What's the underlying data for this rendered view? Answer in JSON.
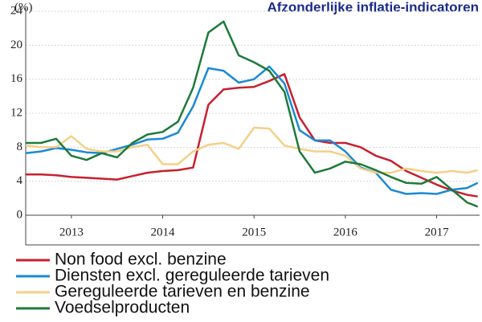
{
  "chart_data": {
    "type": "line",
    "title": "Afzonderlijke inflatie-indicatoren",
    "y_label": "(%)",
    "x": [
      2013.0,
      2013.167,
      2013.333,
      2013.5,
      2013.667,
      2013.833,
      2014.0,
      2014.167,
      2014.333,
      2014.5,
      2014.667,
      2014.833,
      2015.0,
      2015.167,
      2015.333,
      2015.5,
      2015.667,
      2015.833,
      2016.0,
      2016.167,
      2016.333,
      2016.5,
      2016.667,
      2016.833,
      2017.0,
      2017.167,
      2017.333,
      2017.5,
      2017.667,
      2017.833,
      2017.95
    ],
    "xlim": [
      2013.0,
      2017.97
    ],
    "xticks": [
      {
        "value": 2013.5,
        "label": "2013"
      },
      {
        "value": 2014.5,
        "label": "2014"
      },
      {
        "value": 2015.5,
        "label": "2015"
      },
      {
        "value": 2016.5,
        "label": "2016"
      },
      {
        "value": 2017.5,
        "label": "2017"
      }
    ],
    "ylim": [
      0,
      24
    ],
    "yticks": [
      0,
      4,
      8,
      12,
      16,
      20,
      24
    ],
    "grid": true,
    "series": [
      {
        "name": "Non food excl. benzine",
        "color": "#c8202e",
        "values": [
          4.8,
          4.8,
          4.7,
          4.5,
          4.4,
          4.3,
          4.2,
          4.6,
          5.0,
          5.2,
          5.3,
          5.6,
          13.0,
          14.8,
          15.0,
          15.1,
          15.8,
          16.6,
          11.5,
          8.8,
          8.5,
          8.5,
          8.0,
          7.0,
          6.4,
          5.2,
          4.4,
          3.6,
          2.9,
          2.4,
          2.2
        ]
      },
      {
        "name": "Diensten excl. gereguleerde tarieven",
        "color": "#1a8ad4",
        "values": [
          7.3,
          7.5,
          7.9,
          7.7,
          7.4,
          7.3,
          7.8,
          8.3,
          8.9,
          9.0,
          9.7,
          12.8,
          17.3,
          17.0,
          15.6,
          16.0,
          17.5,
          15.5,
          10.0,
          8.8,
          8.8,
          7.5,
          5.6,
          5.0,
          3.0,
          2.5,
          2.6,
          2.5,
          3.0,
          3.2,
          3.8
        ]
      },
      {
        "name": "Gereguleerde tarieven en benzine",
        "color": "#f5cf88",
        "values": [
          8.2,
          8.0,
          8.0,
          9.3,
          7.8,
          7.5,
          7.5,
          8.0,
          8.3,
          6.0,
          6.0,
          7.5,
          8.3,
          8.5,
          7.8,
          10.3,
          10.2,
          8.2,
          7.8,
          7.5,
          7.5,
          7.0,
          5.5,
          5.0,
          5.0,
          5.5,
          5.2,
          5.0,
          5.2,
          5.0,
          5.3
        ]
      },
      {
        "name": "Voedselproducten",
        "color": "#1e7a3a",
        "values": [
          8.5,
          8.5,
          9.0,
          7.0,
          6.5,
          7.3,
          6.8,
          8.5,
          9.5,
          9.8,
          11.0,
          15.0,
          21.5,
          22.8,
          18.8,
          18.0,
          17.0,
          14.5,
          7.5,
          5.0,
          5.5,
          6.3,
          6.0,
          5.3,
          4.5,
          3.8,
          3.7,
          4.5,
          3.0,
          1.5,
          1.0
        ]
      }
    ]
  }
}
